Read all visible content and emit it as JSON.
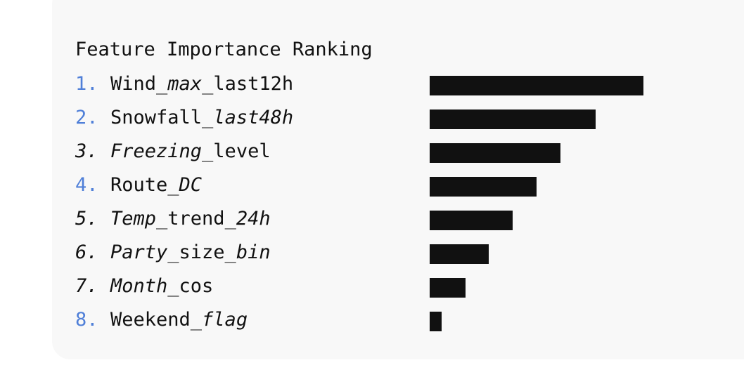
{
  "chart_data": {
    "type": "bar",
    "orientation": "horizontal",
    "title": "Feature Importance Ranking",
    "grid": false,
    "legend": "none",
    "max_value": 18,
    "bar_color": "#111111",
    "number_accent_color": "#4f7fd8",
    "items": [
      {
        "rank": "1.",
        "rank_style": "blue",
        "segments": [
          {
            "t": "Wind_"
          },
          {
            "t": "max",
            "i": true
          },
          {
            "t": "_last12h"
          }
        ],
        "value": 18
      },
      {
        "rank": "2.",
        "rank_style": "blue",
        "segments": [
          {
            "t": "Snowfall_"
          },
          {
            "t": "last48h",
            "i": true
          }
        ],
        "value": 14
      },
      {
        "rank": "3.",
        "rank_style": "italic",
        "segments": [
          {
            "t": "Freezing",
            "i": true
          },
          {
            "t": "_level"
          }
        ],
        "value": 11
      },
      {
        "rank": "4.",
        "rank_style": "blue",
        "segments": [
          {
            "t": "Route_"
          },
          {
            "t": "DC",
            "i": true
          }
        ],
        "value": 9
      },
      {
        "rank": "5.",
        "rank_style": "italic",
        "segments": [
          {
            "t": "Temp",
            "i": true
          },
          {
            "t": "_trend_"
          },
          {
            "t": "24h",
            "i": true
          }
        ],
        "value": 7
      },
      {
        "rank": "6.",
        "rank_style": "italic",
        "segments": [
          {
            "t": "Party",
            "i": true
          },
          {
            "t": "_size_"
          },
          {
            "t": "bin",
            "i": true
          }
        ],
        "value": 5
      },
      {
        "rank": "7.",
        "rank_style": "italic",
        "segments": [
          {
            "t": "Month",
            "i": true
          },
          {
            "t": "_cos"
          }
        ],
        "value": 3
      },
      {
        "rank": "8.",
        "rank_style": "blue",
        "segments": [
          {
            "t": "Weekend_"
          },
          {
            "t": "flag",
            "i": true
          }
        ],
        "value": 1
      }
    ]
  }
}
